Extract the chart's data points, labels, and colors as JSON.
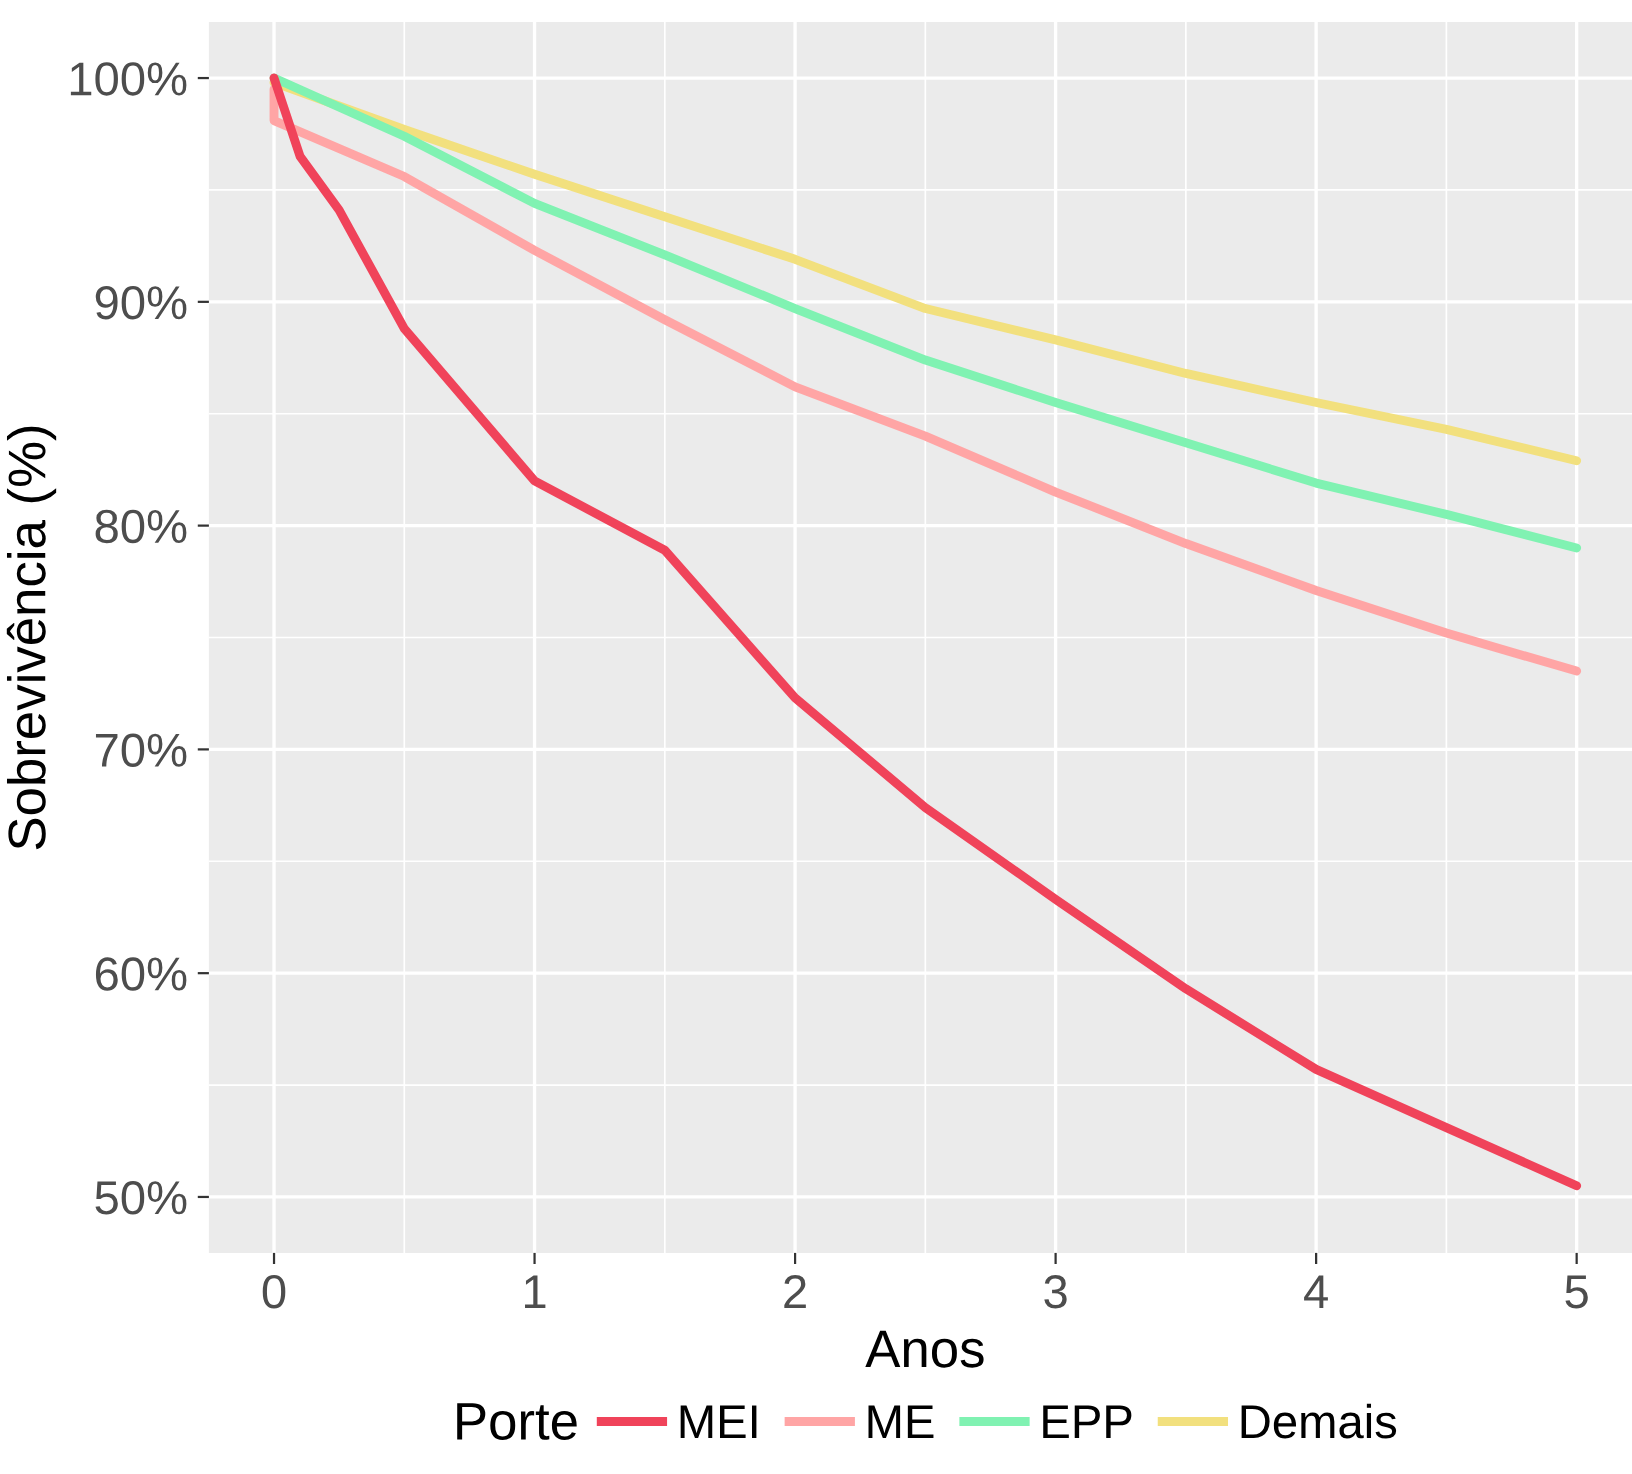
{
  "chart_data": {
    "type": "line",
    "xlabel": "Anos",
    "ylabel": "Sobrevivência (%)",
    "legend_title": "Porte",
    "legend": "bottom",
    "grid": true,
    "marker": "none",
    "line_style": "solid",
    "xlim": [
      -0.25,
      5.25
    ],
    "xticks": [
      0,
      1,
      2,
      3,
      4,
      5
    ],
    "ylim": [
      47.5,
      102.5
    ],
    "yticks": [
      {
        "value": 50,
        "label": "50%"
      },
      {
        "value": 60,
        "label": "60%"
      },
      {
        "value": 70,
        "label": "70%"
      },
      {
        "value": 80,
        "label": "80%"
      },
      {
        "value": 90,
        "label": "90%"
      },
      {
        "value": 100,
        "label": "100%"
      }
    ],
    "series": [
      {
        "name": "MEI",
        "color": "#f0435a",
        "x": [
          0,
          0.1,
          0.25,
          0.5,
          1,
          1.5,
          2,
          2.5,
          3,
          3.5,
          4,
          4.5,
          5
        ],
        "values": [
          100,
          96.5,
          94.1,
          88.8,
          82.0,
          78.9,
          72.3,
          67.4,
          63.3,
          59.3,
          55.7,
          53.1,
          50.5
        ]
      },
      {
        "name": "ME",
        "color": "#ffa5a5",
        "x": [
          0,
          0,
          0.5,
          1,
          1.5,
          2,
          2.5,
          3,
          3.5,
          4,
          4.5,
          5
        ],
        "values": [
          99.5,
          98.1,
          95.6,
          92.3,
          89.2,
          86.2,
          84.0,
          81.5,
          79.2,
          77.1,
          75.2,
          73.5
        ]
      },
      {
        "name": "EPP",
        "color": "#80f2b2",
        "x": [
          0,
          0.5,
          1,
          1.5,
          2,
          2.5,
          3,
          3.5,
          4,
          4.5,
          5
        ],
        "values": [
          100,
          97.4,
          94.4,
          92.1,
          89.7,
          87.4,
          85.5,
          83.7,
          81.9,
          80.5,
          79.0
        ]
      },
      {
        "name": "Demais",
        "color": "#f2e07e",
        "x": [
          0,
          0.5,
          1,
          1.5,
          2,
          2.5,
          3,
          3.5,
          4,
          4.5,
          5
        ],
        "values": [
          99.8,
          97.7,
          95.7,
          93.8,
          91.9,
          89.7,
          88.3,
          86.8,
          85.5,
          84.3,
          82.9
        ]
      }
    ]
  }
}
